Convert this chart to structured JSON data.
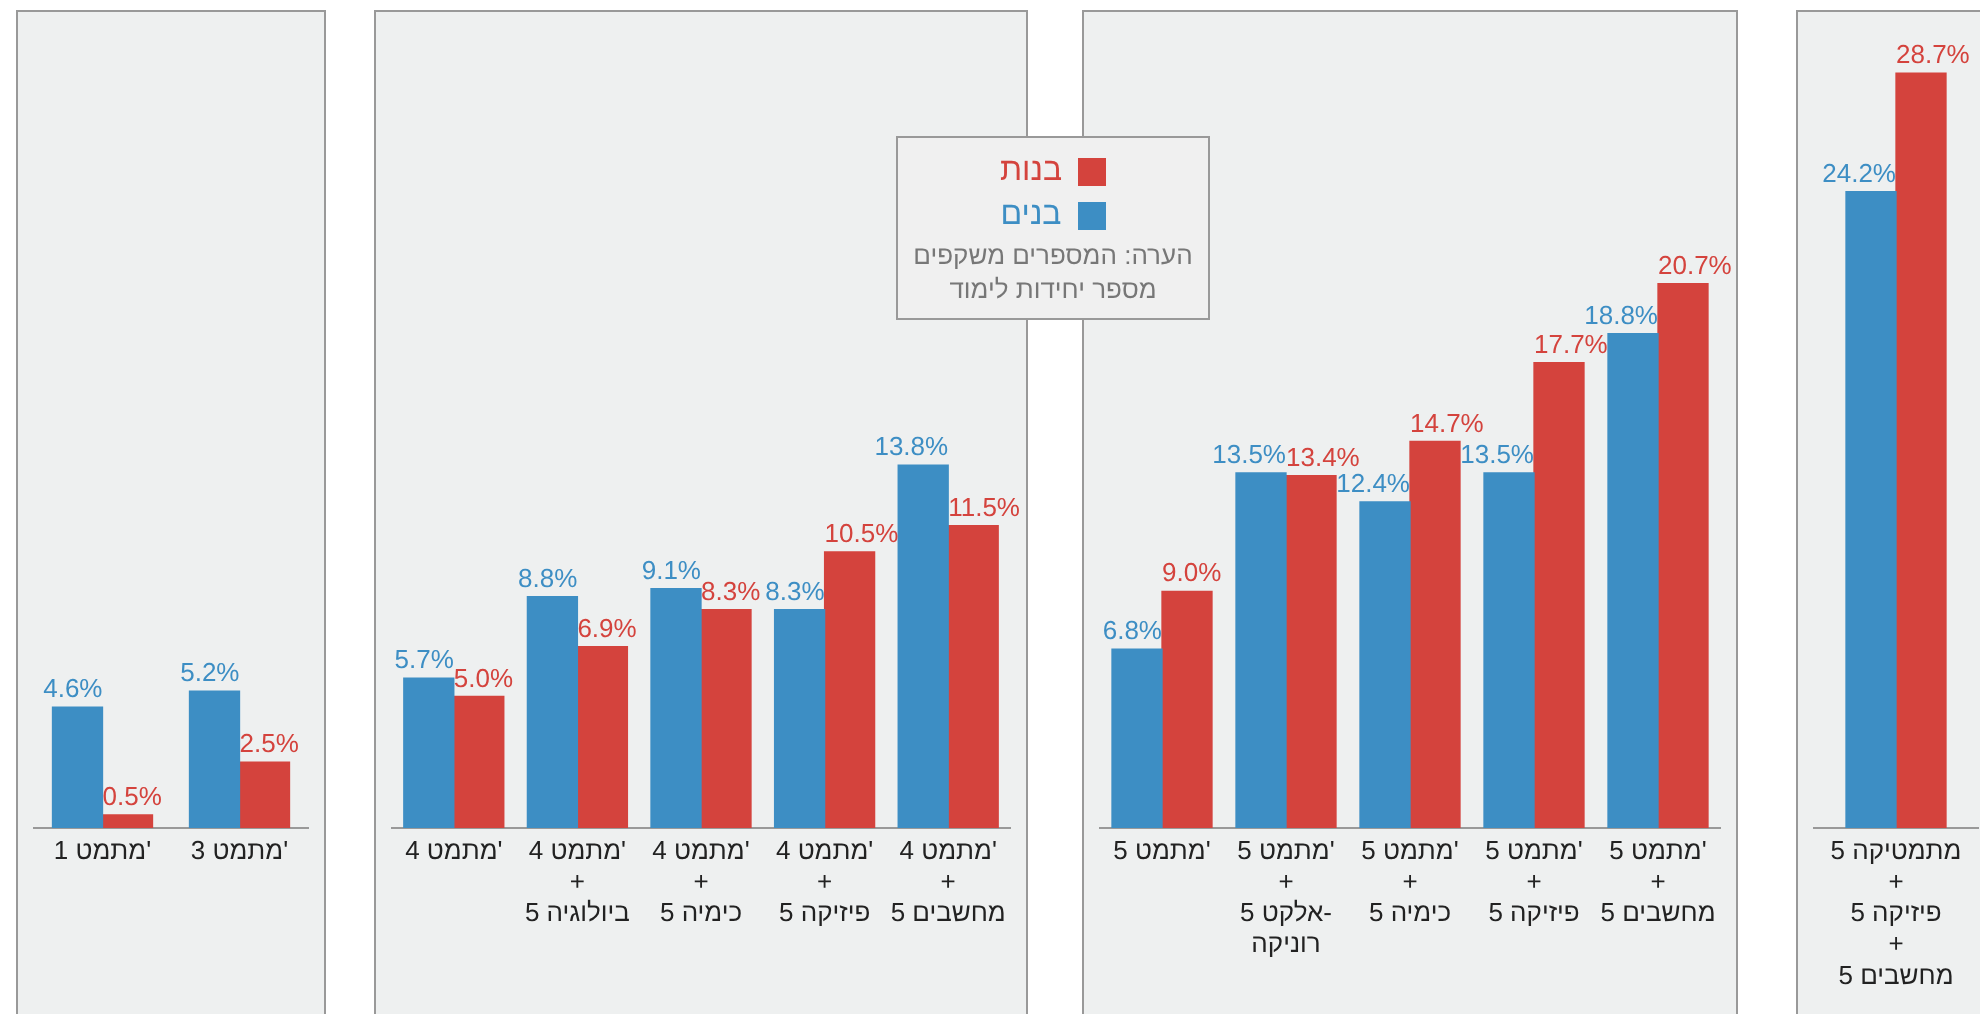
{
  "chart_data": [
    {
      "type": "bar",
      "categories": [
        "1 מתמט'",
        "3 מתמט'"
      ],
      "series": [
        {
          "color": "#3d8ec4",
          "values": [
            4.6,
            5.2
          ],
          "value_labels": [
            "4.6%",
            "5.2%"
          ]
        },
        {
          "color": "#d4433d",
          "values": [
            0.5,
            2.5
          ],
          "value_labels": [
            "0.5%",
            "2.5%"
          ]
        }
      ]
    },
    {
      "type": "bar",
      "categories": [
        "4 מתמט'",
        "4 מתמט'\n+\n5 ביולוגיה",
        "4 מתמט'\n+\n5 כימיה",
        "4 מתמט'\n+\n5 פיזיקה",
        "4 מתמט'\n+\n5 מחשבים"
      ],
      "legend": "top right",
      "annotations": [
        "הערה: המספרים משקפים\nמספר יחידות לימוד"
      ],
      "series": [
        {
          "name": "בנים",
          "color": "#3d8ec4",
          "values": [
            5.7,
            8.8,
            9.1,
            8.3,
            13.8
          ],
          "value_labels": [
            "5.7%",
            "8.8%",
            "9.1%",
            "8.3%",
            "13.8%"
          ]
        },
        {
          "name": "בנות",
          "color": "#d4433d",
          "values": [
            5.0,
            6.9,
            8.3,
            10.5,
            11.5
          ],
          "value_labels": [
            "5.0%",
            "6.9%",
            "8.3%",
            "10.5%",
            "11.5%"
          ]
        }
      ]
    },
    {
      "type": "bar",
      "categories": [
        "5 מתמט'",
        "5 מתמט'\n+\n5 אלקט-\nרוניקה",
        "5 מתמט'\n+\n5 כימיה",
        "5 מתמט'\n+\n5 פיזיקה",
        "5 מתמט'\n+\n5 מחשבים"
      ],
      "series": [
        {
          "color": "#3d8ec4",
          "values": [
            6.8,
            13.5,
            12.4,
            13.5,
            18.8
          ],
          "value_labels": [
            "6.8%",
            "13.5%",
            "12.4%",
            "13.5%",
            "18.8%"
          ]
        },
        {
          "color": "#d4433d",
          "values": [
            9.0,
            13.4,
            14.7,
            17.7,
            20.7
          ],
          "value_labels": [
            "9.0%",
            "13.4%",
            "14.7%",
            "17.7%",
            "20.7%"
          ]
        }
      ]
    },
    {
      "type": "bar",
      "categories": [
        "5 מתמטיקה\n+\n5 פיזיקה\n+\n5 מחשבים"
      ],
      "series": [
        {
          "color": "#3d8ec4",
          "values": [
            24.2
          ],
          "value_labels": [
            "24.2%"
          ]
        },
        {
          "color": "#d4433d",
          "values": [
            28.7
          ],
          "value_labels": [
            "28.7%"
          ]
        }
      ]
    }
  ]
}
